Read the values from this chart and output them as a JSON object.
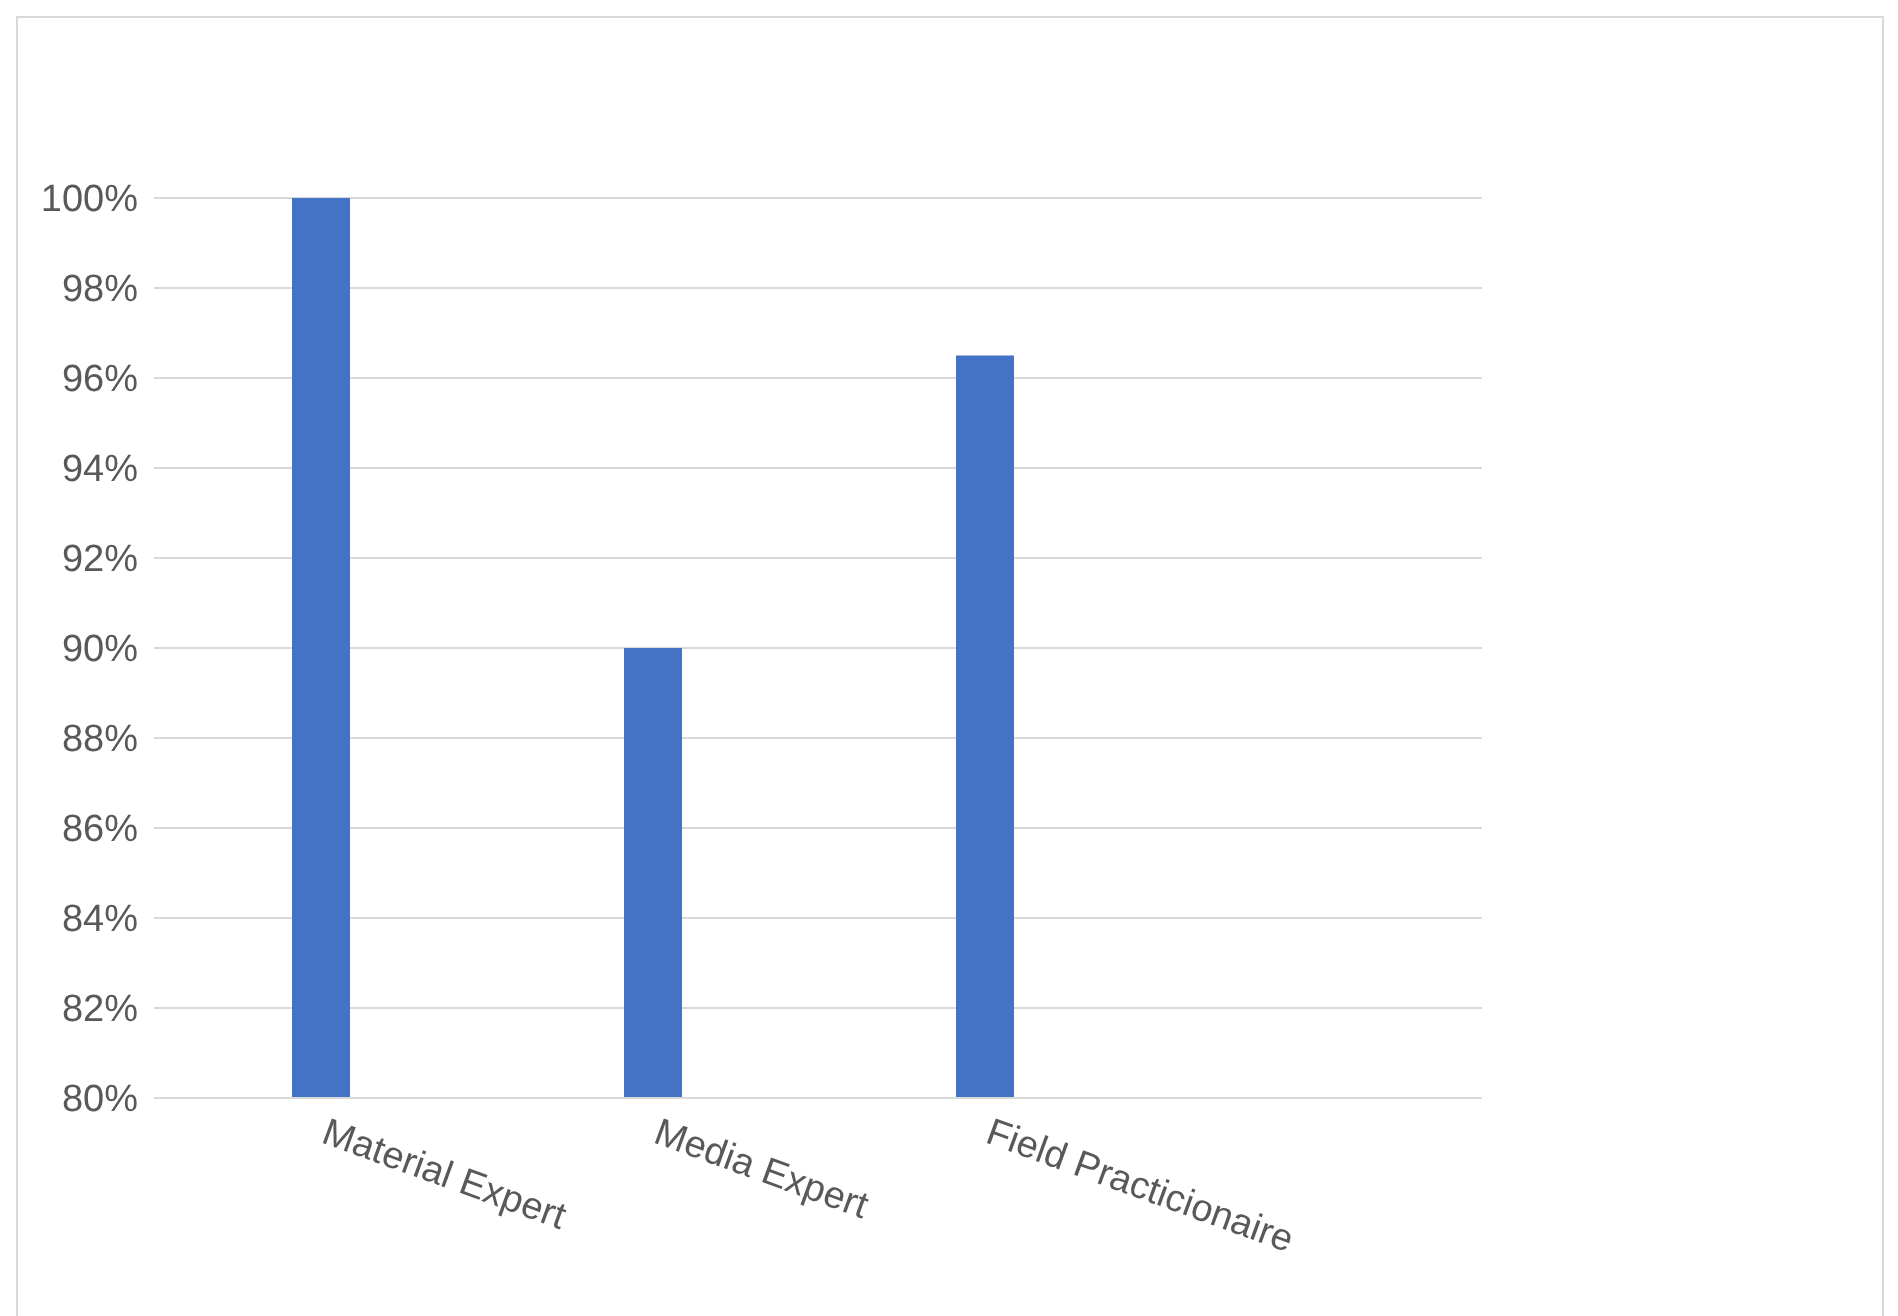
{
  "chart_data": {
    "type": "bar",
    "categories": [
      "Material Expert",
      "Media Expert",
      "Field Practicionaire",
      null
    ],
    "values": [
      100,
      90,
      96.5,
      null
    ],
    "color": "#4472c4",
    "ylim": [
      80,
      100
    ],
    "yticks": [
      {
        "value": 80,
        "label": "80%"
      },
      {
        "value": 82,
        "label": "82%"
      },
      {
        "value": 84,
        "label": "84%"
      },
      {
        "value": 86,
        "label": "86%"
      },
      {
        "value": 88,
        "label": "88%"
      },
      {
        "value": 90,
        "label": "90%"
      },
      {
        "value": 92,
        "label": "92%"
      },
      {
        "value": 94,
        "label": "94%"
      },
      {
        "value": 96,
        "label": "96%"
      },
      {
        "value": 98,
        "label": "98%"
      },
      {
        "value": 100,
        "label": "100%"
      }
    ],
    "grid": "y",
    "legend": false
  }
}
